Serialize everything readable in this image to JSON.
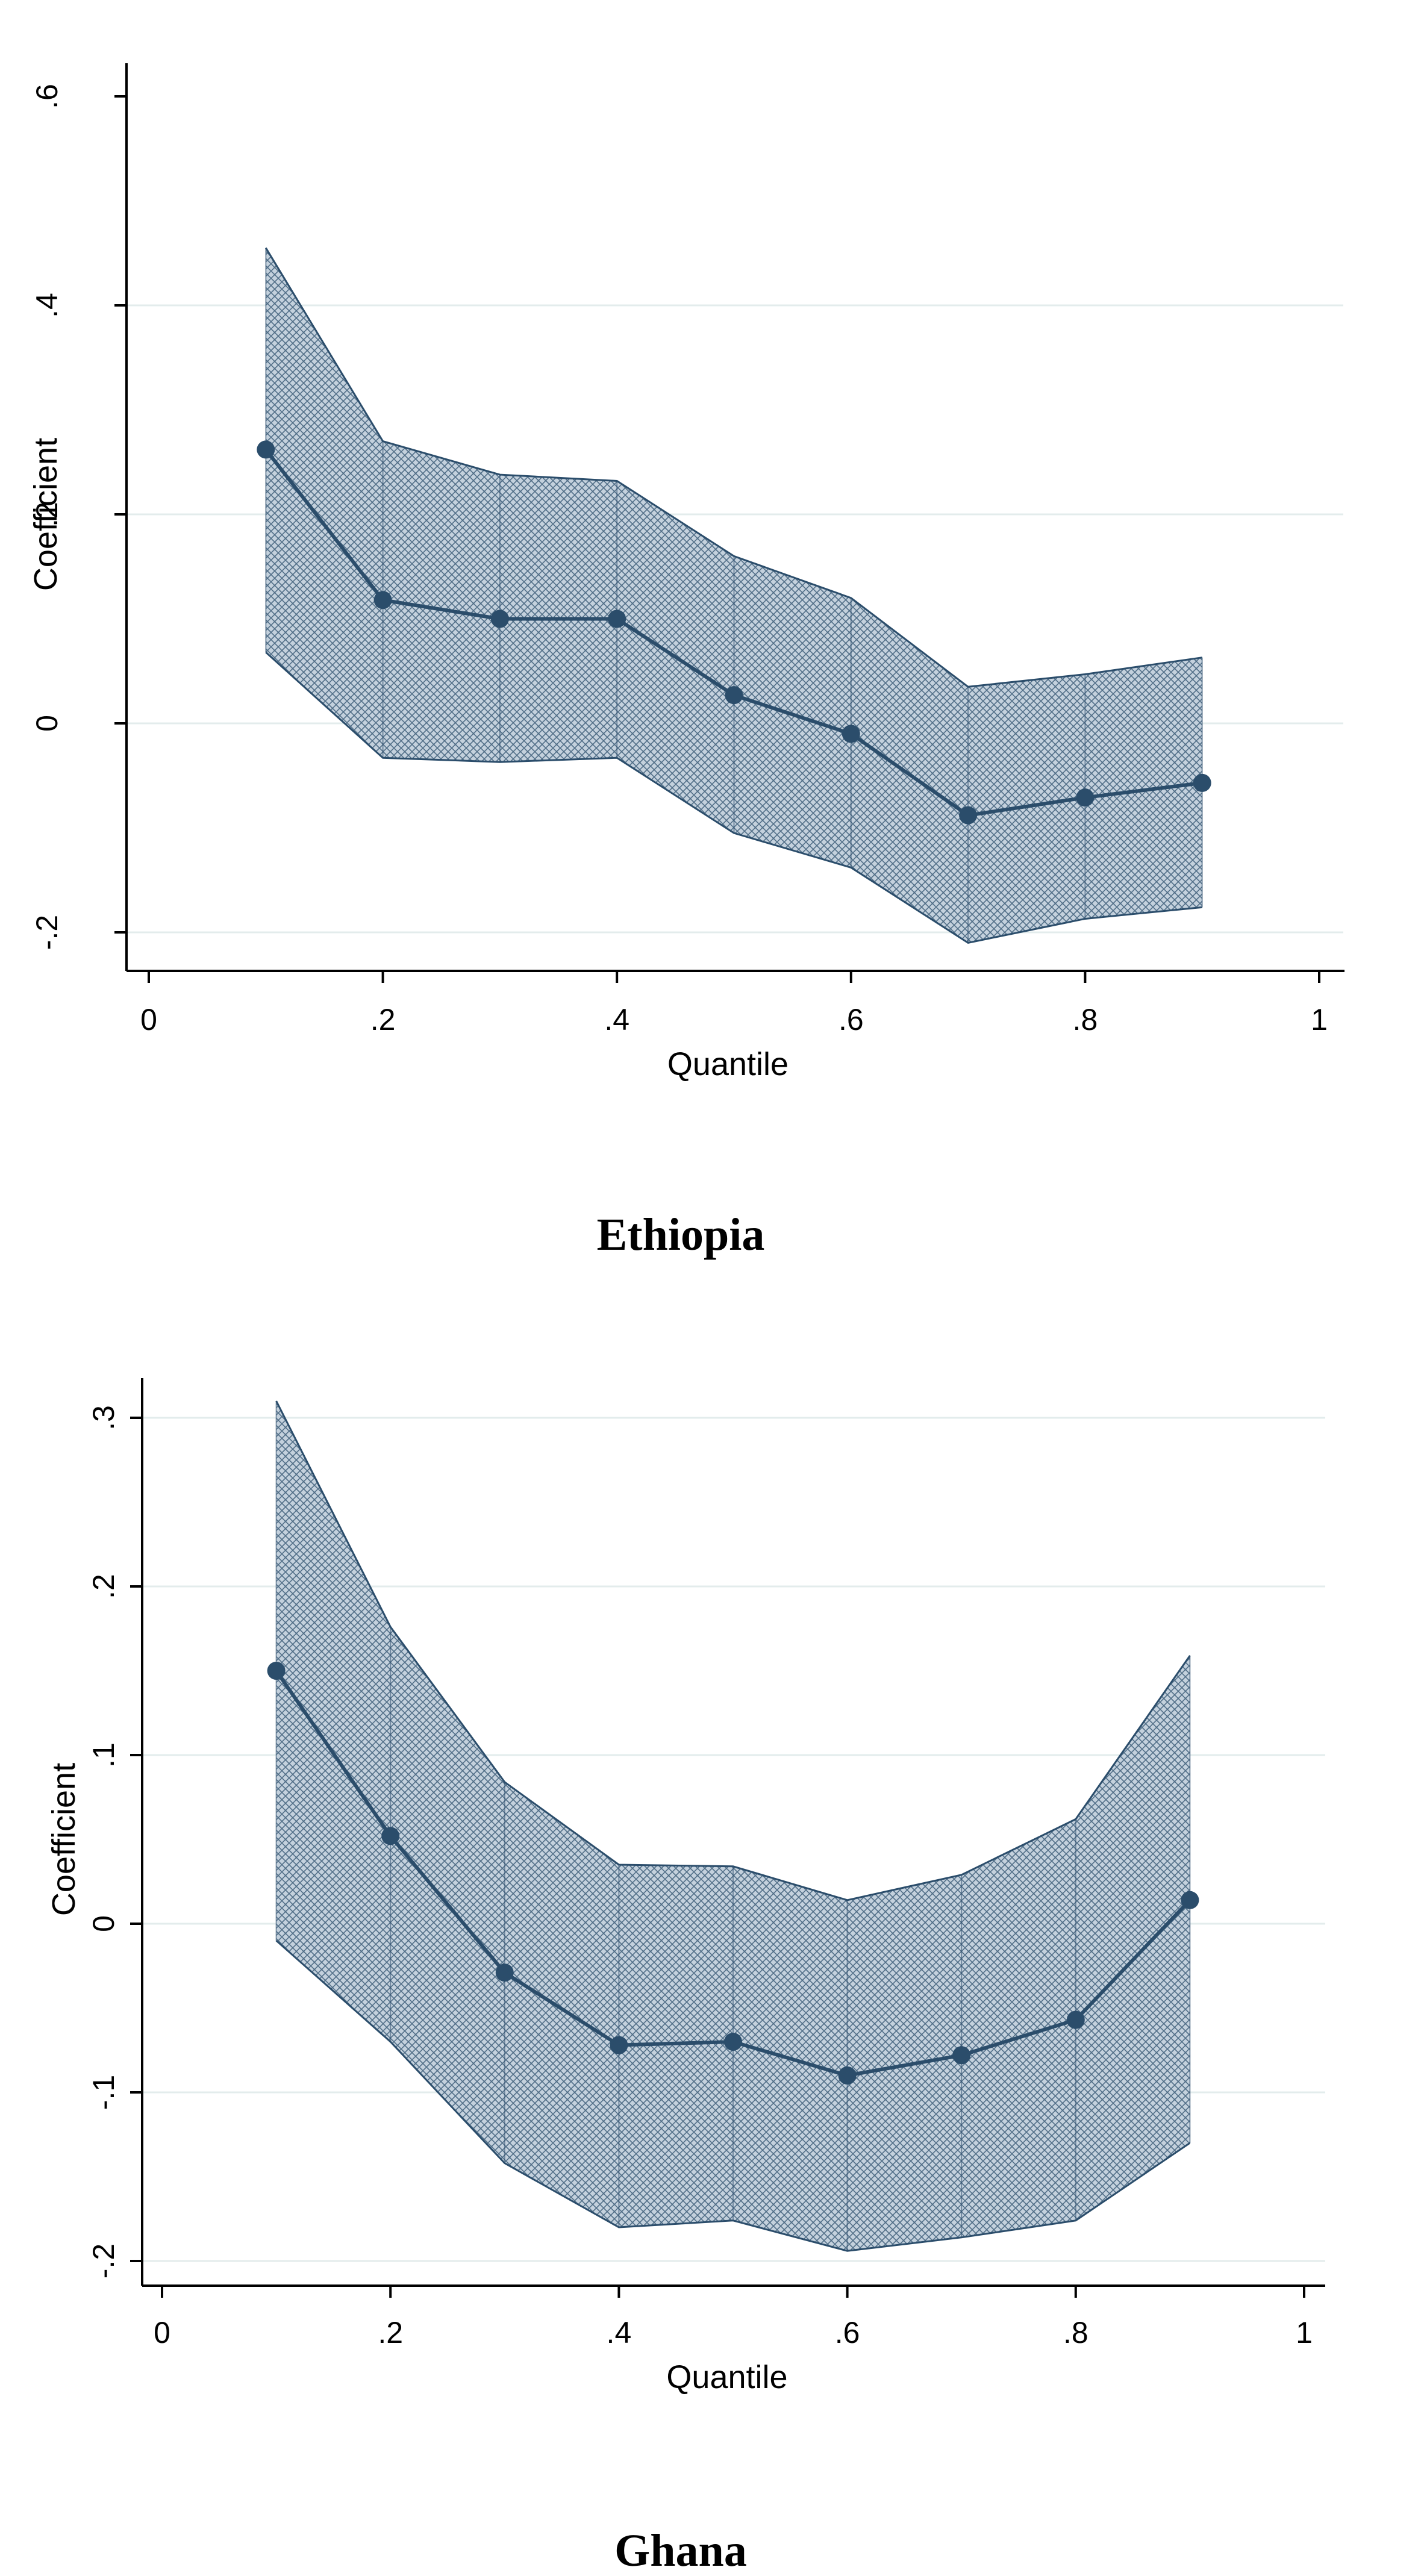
{
  "style": {
    "series_color": "#2b4d6b",
    "band_fill": "#b9c8d6",
    "grid_color": "#e3ecec",
    "axis_color": "#000000"
  },
  "chart_data": [
    {
      "type": "line",
      "caption": "Ethiopia",
      "xlabel": "Quantile",
      "ylabel": "Coefficient",
      "xlim": [
        0,
        1
      ],
      "ylim": [
        -0.2,
        0.6
      ],
      "xticks": [
        0,
        0.2,
        0.4,
        0.6,
        0.8,
        1
      ],
      "xtick_labels": [
        "0",
        ".2",
        ".4",
        ".6",
        ".8",
        "1"
      ],
      "yticks": [
        -0.2,
        0,
        0.2,
        0.4,
        0.6
      ],
      "ytick_labels": [
        "-.2",
        "0",
        ".2",
        ".4",
        ".6"
      ],
      "grid_y": [
        -0.2,
        0,
        0.2,
        0.4
      ],
      "x": [
        0.1,
        0.2,
        0.3,
        0.4,
        0.5,
        0.6,
        0.7,
        0.8,
        0.9
      ],
      "series": [
        {
          "name": "Coefficient",
          "values": [
            0.262,
            0.118,
            0.1,
            0.1,
            0.027,
            -0.01,
            -0.088,
            -0.071,
            -0.057
          ]
        },
        {
          "name": "Upper bound",
          "values": [
            0.455,
            0.27,
            0.238,
            0.232,
            0.16,
            0.12,
            0.035,
            0.047,
            0.063
          ]
        },
        {
          "name": "Lower bound",
          "values": [
            0.068,
            -0.033,
            -0.037,
            -0.033,
            -0.105,
            -0.138,
            -0.21,
            -0.187,
            -0.176
          ]
        }
      ]
    },
    {
      "type": "line",
      "caption": "Ghana",
      "xlabel": "Quantile",
      "ylabel": "Coefficient",
      "xlim": [
        0,
        1
      ],
      "ylim": [
        -0.2,
        0.3
      ],
      "xticks": [
        0,
        0.2,
        0.4,
        0.6,
        0.8,
        1
      ],
      "xtick_labels": [
        "0",
        ".2",
        ".4",
        ".6",
        ".8",
        "1"
      ],
      "yticks": [
        -0.2,
        -0.1,
        0,
        0.1,
        0.2,
        0.3
      ],
      "ytick_labels": [
        "-.2",
        "-.1",
        "0",
        ".1",
        ".2",
        ".3"
      ],
      "grid_y": [
        -0.2,
        -0.1,
        0,
        0.1,
        0.2,
        0.3
      ],
      "x": [
        0.1,
        0.2,
        0.3,
        0.4,
        0.5,
        0.6,
        0.7,
        0.8,
        0.9
      ],
      "series": [
        {
          "name": "Coefficient",
          "values": [
            0.15,
            0.052,
            -0.029,
            -0.072,
            -0.07,
            -0.09,
            -0.078,
            -0.057,
            0.014
          ]
        },
        {
          "name": "Upper bound",
          "values": [
            0.31,
            0.176,
            0.084,
            0.035,
            0.034,
            0.014,
            0.029,
            0.062,
            0.159
          ]
        },
        {
          "name": "Lower bound",
          "values": [
            -0.01,
            -0.07,
            -0.142,
            -0.18,
            -0.176,
            -0.194,
            -0.186,
            -0.176,
            -0.13
          ]
        }
      ]
    }
  ]
}
